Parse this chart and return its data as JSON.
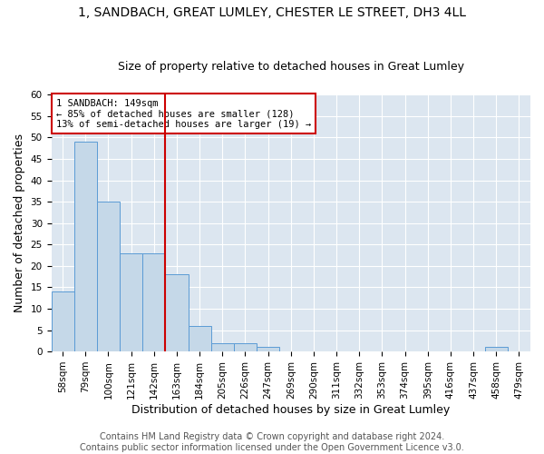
{
  "title": "1, SANDBACH, GREAT LUMLEY, CHESTER LE STREET, DH3 4LL",
  "subtitle": "Size of property relative to detached houses in Great Lumley",
  "xlabel": "Distribution of detached houses by size in Great Lumley",
  "ylabel": "Number of detached properties",
  "categories": [
    "58sqm",
    "79sqm",
    "100sqm",
    "121sqm",
    "142sqm",
    "163sqm",
    "184sqm",
    "205sqm",
    "226sqm",
    "247sqm",
    "269sqm",
    "290sqm",
    "311sqm",
    "332sqm",
    "353sqm",
    "374sqm",
    "395sqm",
    "416sqm",
    "437sqm",
    "458sqm",
    "479sqm"
  ],
  "values": [
    14,
    49,
    35,
    23,
    23,
    18,
    6,
    2,
    2,
    1,
    0,
    0,
    0,
    0,
    0,
    0,
    0,
    0,
    0,
    1,
    0
  ],
  "bar_color": "#c5d8e8",
  "bar_edge_color": "#5b9bd5",
  "vline_x_index": 4,
  "vline_color": "#cc0000",
  "annotation_text": "1 SANDBACH: 149sqm\n← 85% of detached houses are smaller (128)\n13% of semi-detached houses are larger (19) →",
  "annotation_box_color": "#ffffff",
  "annotation_box_edge_color": "#cc0000",
  "ylim": [
    0,
    60
  ],
  "yticks": [
    0,
    5,
    10,
    15,
    20,
    25,
    30,
    35,
    40,
    45,
    50,
    55,
    60
  ],
  "footer_line1": "Contains HM Land Registry data © Crown copyright and database right 2024.",
  "footer_line2": "Contains public sector information licensed under the Open Government Licence v3.0.",
  "plot_bg_color": "#dce6f0",
  "title_fontsize": 10,
  "subtitle_fontsize": 9,
  "axis_label_fontsize": 9,
  "tick_fontsize": 7.5,
  "annotation_fontsize": 7.5,
  "footer_fontsize": 7
}
